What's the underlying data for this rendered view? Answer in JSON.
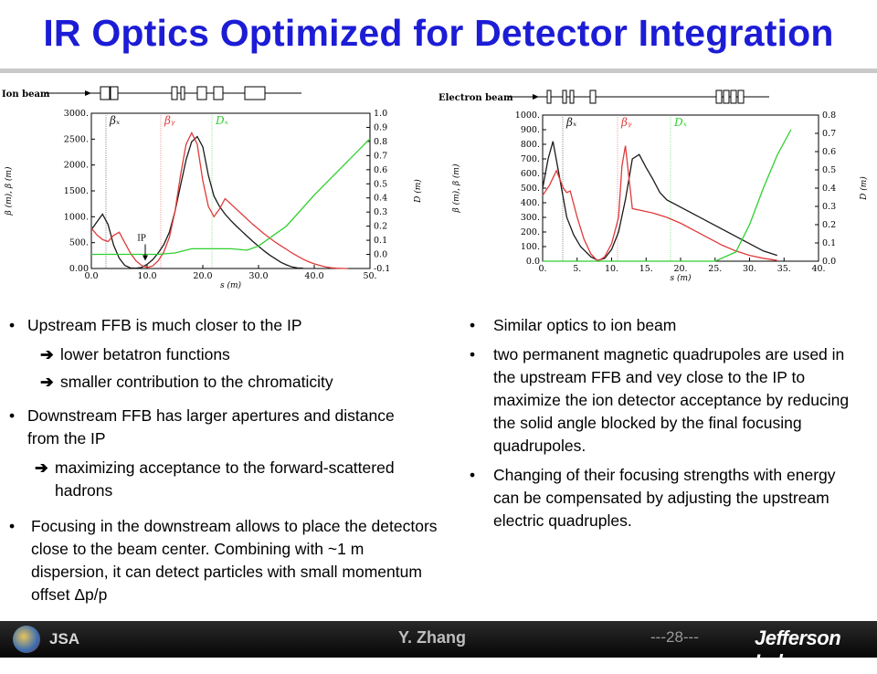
{
  "title": "IR Optics Optimized for Detector Integration",
  "chart_data": [
    {
      "type": "line",
      "beamline_label": "Ion beam",
      "xlabel": "s (m)",
      "ylabel": "β (m), β (m)",
      "y2label": "D (m)",
      "xlim": [
        0,
        50
      ],
      "ylim": [
        0,
        3000
      ],
      "y2lim": [
        -0.1,
        1.0
      ],
      "xticks": [
        "0.0",
        "10.0",
        "20.0",
        "30.0",
        "40.0",
        "50."
      ],
      "yticks": [
        "0.00",
        "500.",
        "1000.",
        "1500.",
        "2000.",
        "2500.",
        "3000."
      ],
      "y2ticks": [
        "-0.1",
        "0.0",
        "0.1",
        "0.2",
        "0.3",
        "0.4",
        "0.5",
        "0.6",
        "0.7",
        "0.8",
        "0.9",
        "1.0"
      ],
      "legend": [
        "βₓ",
        "βᵧ",
        "Dₓ"
      ],
      "annotation": "IP",
      "series": [
        {
          "color": "#1a1a1a",
          "axis": "left",
          "x": [
            0,
            1,
            2,
            3,
            4,
            5,
            6,
            7,
            8,
            9,
            10,
            11,
            12,
            13,
            14,
            15,
            16,
            17,
            18,
            19,
            20,
            21,
            22,
            23,
            24,
            25,
            26,
            27,
            28,
            29,
            30,
            31,
            32,
            33,
            34,
            35,
            36,
            37,
            38
          ],
          "y": [
            750,
            900,
            1050,
            850,
            450,
            200,
            60,
            10,
            5,
            20,
            80,
            170,
            300,
            460,
            700,
            1100,
            1600,
            2100,
            2450,
            2550,
            2350,
            1800,
            1400,
            1200,
            1050,
            930,
            820,
            720,
            620,
            520,
            430,
            340,
            260,
            190,
            120,
            70,
            30,
            10,
            5
          ]
        },
        {
          "color": "#e03a3a",
          "axis": "left",
          "x": [
            0,
            1,
            2,
            3,
            4,
            5,
            6,
            7,
            8,
            9,
            10,
            11,
            12,
            13,
            14,
            15,
            16,
            17,
            18,
            19,
            20,
            21,
            22,
            23,
            24,
            25,
            26,
            27,
            28,
            29,
            30,
            31,
            32,
            33,
            34,
            35,
            36,
            37,
            38,
            39,
            40,
            41,
            42,
            43,
            44,
            45,
            46
          ],
          "y": [
            780,
            650,
            560,
            520,
            640,
            700,
            500,
            300,
            150,
            60,
            20,
            50,
            150,
            320,
            600,
            1100,
            1800,
            2400,
            2620,
            2400,
            1700,
            1200,
            1000,
            1150,
            1350,
            1250,
            1150,
            1050,
            950,
            850,
            760,
            670,
            590,
            510,
            440,
            370,
            300,
            240,
            180,
            130,
            90,
            60,
            30,
            15,
            5,
            2,
            0
          ]
        },
        {
          "color": "#2fcf2f",
          "axis": "right",
          "x": [
            0,
            5,
            10,
            12,
            15,
            18,
            20,
            25,
            28,
            30,
            35,
            40,
            45,
            50
          ],
          "y": [
            0.0,
            0.0,
            0.0,
            0.0,
            0.01,
            0.04,
            0.04,
            0.04,
            0.03,
            0.06,
            0.2,
            0.42,
            0.62,
            0.82
          ]
        }
      ]
    },
    {
      "type": "line",
      "beamline_label": "Electron beam",
      "xlabel": "s (m)",
      "ylabel": "β (m), β (m)",
      "y2label": "D (m)",
      "xlim": [
        0,
        40
      ],
      "ylim": [
        0,
        1000
      ],
      "y2lim": [
        0,
        0.8
      ],
      "xticks": [
        "0.",
        "5.",
        "10.",
        "15.",
        "20.",
        "25.",
        "30.",
        "35.",
        "40."
      ],
      "yticks": [
        "0.0",
        "100.",
        "200.",
        "300.",
        "400.",
        "500.",
        "600.",
        "700.",
        "800.",
        "900.",
        "1000."
      ],
      "y2ticks": [
        "0.0",
        "0.1",
        "0.2",
        "0.3",
        "0.4",
        "0.5",
        "0.6",
        "0.7",
        "0.8"
      ],
      "legend": [
        "βₓ",
        "βᵧ",
        "Dₓ"
      ],
      "series": [
        {
          "color": "#1a1a1a",
          "axis": "left",
          "x": [
            0,
            0.8,
            1.5,
            2.5,
            3.5,
            4.5,
            5.5,
            7,
            8,
            9,
            10,
            11,
            12,
            13,
            14,
            15,
            16,
            17,
            18,
            20,
            22,
            24,
            26,
            28,
            30,
            32,
            34
          ],
          "y": [
            500,
            700,
            820,
            560,
            300,
            180,
            100,
            30,
            5,
            20,
            80,
            200,
            420,
            700,
            730,
            640,
            560,
            470,
            420,
            370,
            320,
            270,
            220,
            170,
            120,
            70,
            40
          ]
        },
        {
          "color": "#e03a3a",
          "axis": "left",
          "x": [
            0,
            1,
            2,
            3,
            3.5,
            4,
            5,
            6,
            7,
            8,
            9,
            10,
            11,
            11.5,
            12,
            13,
            14,
            16,
            18,
            20,
            22,
            24,
            26,
            28,
            30,
            32,
            34
          ],
          "y": [
            450,
            520,
            620,
            500,
            470,
            480,
            300,
            150,
            50,
            0,
            30,
            120,
            300,
            650,
            790,
            360,
            350,
            330,
            300,
            260,
            210,
            160,
            110,
            70,
            40,
            20,
            5
          ]
        },
        {
          "color": "#2fcf2f",
          "axis": "right",
          "x": [
            0,
            5,
            10,
            15,
            20,
            25,
            28,
            30,
            32,
            34,
            36
          ],
          "y": [
            0.0,
            0.0,
            0.0,
            0.0,
            0.0,
            0.0,
            0.05,
            0.2,
            0.4,
            0.58,
            0.72
          ]
        }
      ]
    }
  ],
  "left_text": {
    "b1": "Upstream FFB is much closer to the IP",
    "b1_s1": "lower betatron functions",
    "b1_s2": "smaller contribution to the chromaticity",
    "b2": "Downstream FFB has larger apertures and distance from the IP",
    "b2_s1": "maximizing acceptance to the forward-scattered hadrons",
    "b3": "Focusing in the downstream allows to place the detectors close to the beam center. Combining with ~1 m dispersion, it can detect particles with small momentum offset Δp/p"
  },
  "right_text": {
    "b1": "Similar optics to ion beam",
    "b2": "two permanent magnetic quadrupoles are used in the upstream FFB and vey close to the IP to maximize the ion detector acceptance by reducing the solid angle blocked by the final focusing quadrupoles.",
    "b3": "Changing of their focusing strengths with energy can be compensated by adjusting the upstream electric quadruples."
  },
  "footer": {
    "name": "Y. Zhang",
    "page": "---28---",
    "lab": "Jefferson Lab",
    "logo_text": "JSA"
  },
  "symbols": {
    "bullet": "•",
    "arrow": "➔"
  },
  "colors": {
    "title": "#1c1cd6",
    "series_black": "#1a1a1a",
    "series_red": "#e03a3a",
    "series_green": "#2fcf2f"
  }
}
